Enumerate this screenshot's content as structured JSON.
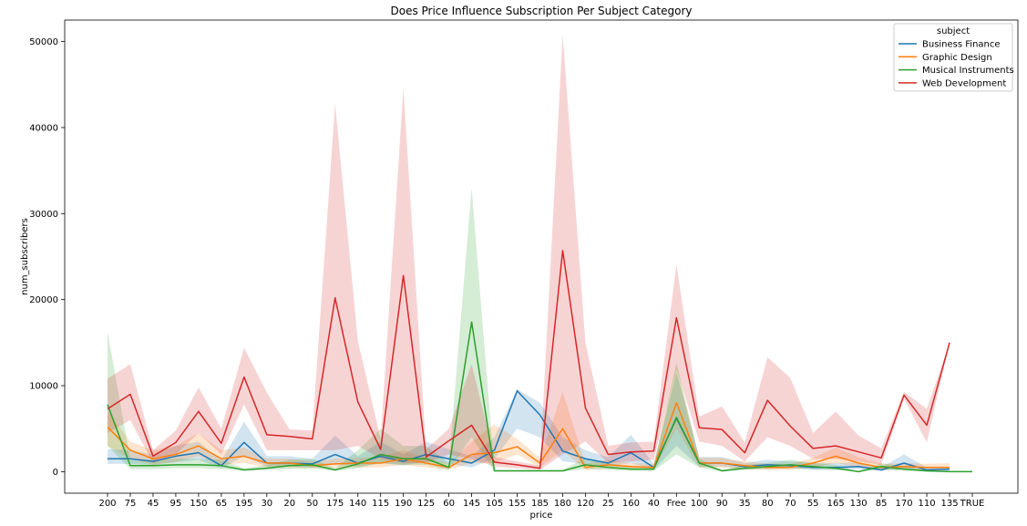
{
  "chart_data": {
    "type": "line",
    "title": "Does Price Influence Subscription Per Subject Category",
    "xlabel": "price",
    "ylabel": "num_subscribers",
    "ylim": [
      -2500,
      52500
    ],
    "yticks": [
      0,
      10000,
      20000,
      30000,
      40000,
      50000
    ],
    "grid": false,
    "legend": {
      "title": "subject",
      "position": "top-right"
    },
    "categories": [
      "200",
      "75",
      "45",
      "95",
      "150",
      "65",
      "195",
      "30",
      "20",
      "50",
      "175",
      "140",
      "115",
      "190",
      "125",
      "60",
      "145",
      "105",
      "155",
      "185",
      "180",
      "120",
      "25",
      "160",
      "40",
      "Free",
      "100",
      "90",
      "35",
      "80",
      "70",
      "55",
      "165",
      "130",
      "85",
      "170",
      "110",
      "135",
      "TRUE"
    ],
    "series": [
      {
        "name": "Business Finance",
        "color": "#1f77b4",
        "values": [
          1500,
          1500,
          1200,
          1800,
          2200,
          700,
          3400,
          1000,
          1000,
          900,
          2000,
          1000,
          1800,
          1200,
          2000,
          1500,
          1000,
          2500,
          9400,
          6600,
          2400,
          1500,
          1000,
          2200,
          500,
          6200,
          1000,
          1000,
          600,
          800,
          700,
          500,
          500,
          600,
          200,
          1000,
          200,
          300,
          null
        ],
        "lower": [
          900,
          900,
          800,
          1100,
          1400,
          400,
          1800,
          600,
          600,
          500,
          900,
          600,
          1000,
          700,
          1200,
          900,
          500,
          1500,
          5000,
          4000,
          1200,
          900,
          600,
          1000,
          200,
          3000,
          600,
          600,
          300,
          400,
          400,
          200,
          200,
          300,
          100,
          300,
          0,
          100,
          null
        ],
        "upper": [
          2600,
          2500,
          2000,
          3000,
          3500,
          1300,
          5800,
          1800,
          1800,
          1500,
          4200,
          1800,
          3500,
          2000,
          3500,
          2600,
          1800,
          4000,
          9600,
          8000,
          4000,
          2500,
          1700,
          4300,
          900,
          11500,
          1700,
          1700,
          1000,
          1400,
          1200,
          1000,
          1000,
          1100,
          500,
          2000,
          500,
          600,
          null
        ]
      },
      {
        "name": "Graphic Design",
        "color": "#ff7f0e",
        "values": [
          5200,
          2500,
          1500,
          2000,
          3000,
          1500,
          1800,
          1000,
          1000,
          700,
          900,
          1000,
          1000,
          1500,
          1000,
          500,
          2000,
          2200,
          2900,
          1000,
          5000,
          500,
          800,
          600,
          500,
          8000,
          1000,
          1000,
          700,
          500,
          500,
          1000,
          1800,
          1000,
          500,
          600,
          500,
          500,
          null
        ],
        "lower": [
          3000,
          1500,
          800,
          1200,
          1800,
          800,
          1000,
          500,
          500,
          400,
          500,
          500,
          500,
          800,
          500,
          200,
          1000,
          1000,
          2000,
          500,
          2500,
          200,
          400,
          300,
          200,
          5000,
          500,
          500,
          300,
          200,
          200,
          500,
          1000,
          500,
          200,
          300,
          200,
          200,
          null
        ],
        "upper": [
          7000,
          3500,
          2500,
          3000,
          4500,
          2500,
          2800,
          1500,
          1500,
          1200,
          1500,
          1600,
          1700,
          2500,
          1600,
          900,
          3500,
          5500,
          3800,
          1600,
          9300,
          900,
          1400,
          1000,
          900,
          12200,
          1600,
          1600,
          1200,
          900,
          900,
          1600,
          2800,
          1700,
          900,
          1000,
          900,
          1000,
          null
        ]
      },
      {
        "name": "Musical Instruments",
        "color": "#2ca02c",
        "values": [
          7800,
          700,
          700,
          800,
          800,
          700,
          200,
          400,
          700,
          800,
          200,
          900,
          2000,
          1500,
          1500,
          500,
          17400,
          100,
          100,
          100,
          100,
          800,
          500,
          300,
          300,
          6300,
          1000,
          100,
          400,
          600,
          800,
          600,
          400,
          0,
          600,
          300,
          100,
          0,
          0
        ],
        "lower": [
          3000,
          300,
          300,
          400,
          400,
          300,
          100,
          200,
          300,
          400,
          100,
          400,
          1000,
          800,
          800,
          200,
          4000,
          0,
          0,
          0,
          0,
          300,
          200,
          100,
          100,
          2000,
          500,
          0,
          200,
          300,
          400,
          300,
          200,
          0,
          300,
          100,
          0,
          0,
          0
        ],
        "upper": [
          16300,
          1400,
          1400,
          1500,
          1500,
          1400,
          400,
          800,
          1400,
          1500,
          400,
          2500,
          5000,
          3000,
          3000,
          1000,
          33000,
          200,
          200,
          200,
          200,
          1600,
          1000,
          600,
          600,
          12700,
          1500,
          200,
          800,
          1000,
          1400,
          1000,
          800,
          0,
          1000,
          600,
          200,
          0,
          0
        ]
      },
      {
        "name": "Web Development",
        "color": "#d62728",
        "values": [
          7300,
          9000,
          1800,
          3400,
          7000,
          3300,
          11000,
          4300,
          4100,
          3800,
          20200,
          8100,
          2600,
          22800,
          1700,
          3600,
          5400,
          1100,
          800,
          400,
          25700,
          7400,
          2000,
          2300,
          2400,
          17900,
          5100,
          4900,
          2200,
          8300,
          5300,
          2700,
          3000,
          2300,
          1600,
          8900,
          5400,
          15000,
          null
        ],
        "lower": [
          4500,
          6000,
          1000,
          2000,
          4500,
          2000,
          7800,
          2500,
          2500,
          2500,
          2500,
          3000,
          1500,
          1000,
          1000,
          2000,
          1500,
          600,
          400,
          200,
          2000,
          3500,
          1000,
          1200,
          1400,
          12000,
          3500,
          3000,
          1200,
          4000,
          3000,
          1500,
          1500,
          1200,
          800,
          8500,
          3400,
          15000,
          null
        ],
        "upper": [
          10800,
          12500,
          2500,
          4800,
          9800,
          5000,
          14400,
          9200,
          4900,
          4800,
          42800,
          15200,
          3800,
          44600,
          2600,
          5000,
          12500,
          1700,
          1200,
          700,
          50800,
          15000,
          3000,
          3400,
          3500,
          24100,
          6400,
          7600,
          3400,
          13300,
          10900,
          4500,
          7000,
          4200,
          2700,
          9300,
          7300,
          15000,
          null
        ]
      }
    ]
  }
}
